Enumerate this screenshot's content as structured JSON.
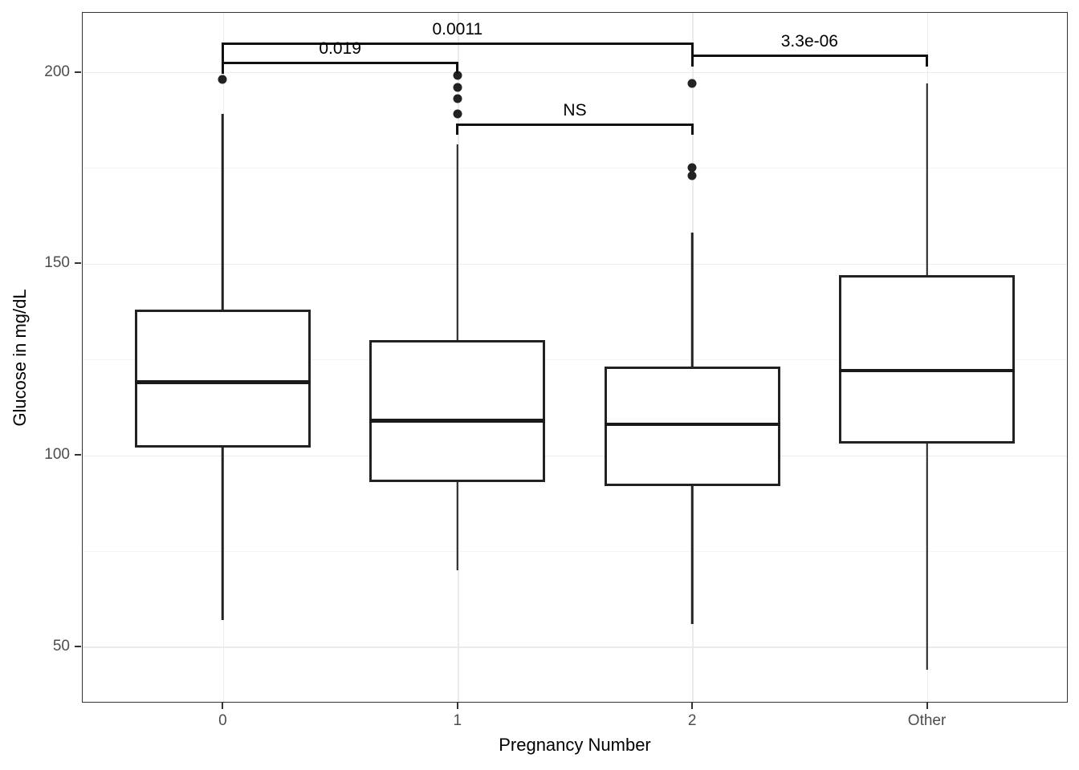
{
  "chart_data": {
    "type": "boxplot",
    "title": "",
    "xlabel": "Pregnancy Number",
    "ylabel": "Glucose in mg/dL",
    "categories": [
      "0",
      "1",
      "2",
      "Other"
    ],
    "y_axis": {
      "range": [
        35.4,
        215.6
      ],
      "major_ticks": [
        50,
        100,
        150,
        200
      ],
      "minor_gridlines": [
        75,
        125,
        175
      ],
      "grid": "on",
      "unit": "mg/dL"
    },
    "boxes": [
      {
        "category": "0",
        "min": 57,
        "q1": 102,
        "median": 119,
        "q3": 138,
        "max": 189,
        "outliers": [
          198
        ]
      },
      {
        "category": "1",
        "min": 70,
        "q1": 93,
        "median": 109,
        "q3": 130,
        "max": 181,
        "outliers": [
          199,
          196,
          193,
          189
        ]
      },
      {
        "category": "2",
        "min": 56,
        "q1": 92,
        "median": 108,
        "q3": 123,
        "max": 158,
        "outliers": [
          197,
          175,
          173
        ]
      },
      {
        "category": "Other",
        "min": 44,
        "q1": 103,
        "median": 122,
        "q3": 147,
        "max": 197,
        "outliers": []
      }
    ],
    "comparisons": [
      {
        "group_a": "0",
        "group_b": "1",
        "label": "0.019",
        "y_value": 202.6,
        "tick_drop": 3.1
      },
      {
        "group_a": "0",
        "group_b": "2",
        "label": "0.0011",
        "y_value": 207.6,
        "tick_drop": 6.0
      },
      {
        "group_a": "1",
        "group_b": "2",
        "label": "NS",
        "y_value": 186.5,
        "tick_drop": 3.0
      },
      {
        "group_a": "2",
        "group_b": "Other",
        "label": "3.3e-06",
        "y_value": 204.5,
        "tick_drop": 3.1
      }
    ],
    "legend": "none",
    "colors": {
      "box_stroke": "#222222",
      "box_fill": "#ffffff",
      "outlier": "#222222",
      "major_gridline": "#ebebeb",
      "minor_gridline": "#f3f3f3",
      "panel_border": "#343434",
      "tick_label": "#4d4d4d",
      "axis_title": "#000000",
      "bracket": "#111111"
    }
  }
}
